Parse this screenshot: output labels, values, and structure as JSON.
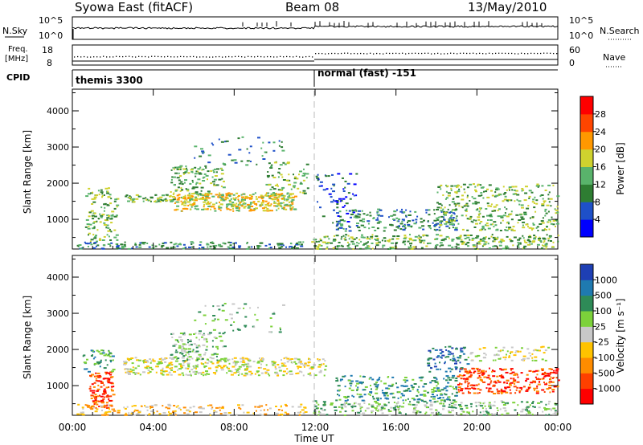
{
  "header": {
    "station": "Syowa East (fitACF)",
    "beam": "Beam 08",
    "date": "13/May/2010"
  },
  "panels": {
    "nsky_label": "N.Sky",
    "nsky_ticks": [
      "10^5",
      "10^0"
    ],
    "nsearch_label": "N.Search",
    "nsearch_ticks": [
      "10^5",
      "10^0"
    ],
    "freq_label_1": "Freq.",
    "freq_label_2": "[MHz]",
    "freq_ticks": [
      "18",
      "8"
    ],
    "nave_label": "Nave",
    "nave_ticks": [
      "60",
      "0"
    ],
    "cpid_label": "CPID",
    "cpid_segments": [
      "themis 3300",
      "normal (fast) -151"
    ]
  },
  "colorbars": {
    "power": {
      "label": "Power [dB]",
      "ticks": [
        "28",
        "24",
        "20",
        "16",
        "12",
        "8",
        "4"
      ],
      "colors": [
        "#0000ff",
        "#1e50c8",
        "#2e7d32",
        "#59b36b",
        "#cfd22e",
        "#ff9800",
        "#ff4500",
        "#ff0000"
      ]
    },
    "velocity": {
      "label": "Velocity [m s⁻¹]",
      "ticks": [
        "1000",
        "500",
        "100",
        "25",
        "-25",
        "-100",
        "-500",
        "-1000"
      ],
      "colors": [
        "#ff0000",
        "#ff4000",
        "#ff8c00",
        "#ffc300",
        "#c8c8c8",
        "#7cd13a",
        "#2e8b57",
        "#1f7ab0",
        "#1e3fb4"
      ]
    }
  },
  "chart_data": [
    {
      "type": "heatmap",
      "title": "Power",
      "ylabel": "Slant Range [km]",
      "xlabel": "",
      "x_ticks": [
        "00:00",
        "04:00",
        "08:00",
        "12:00",
        "16:00",
        "20:00",
        "00:00"
      ],
      "y_ticks": [
        "1000",
        "2000",
        "3000",
        "4000"
      ],
      "ylim": [
        180,
        4600
      ],
      "xlim_hours": [
        0,
        24
      ],
      "scatter_regions": [
        {
          "t0": 0.6,
          "t1": 2.2,
          "r0": 400,
          "r1": 1900,
          "n": 120,
          "level": 3
        },
        {
          "t0": 0.2,
          "t1": 11.5,
          "r0": 200,
          "r1": 400,
          "n": 160,
          "level": 2
        },
        {
          "t0": 2.5,
          "t1": 5.0,
          "r0": 1500,
          "r1": 1700,
          "n": 60,
          "level": 3
        },
        {
          "t0": 5.0,
          "t1": 11.0,
          "r0": 1250,
          "r1": 1750,
          "n": 360,
          "level": 4
        },
        {
          "t0": 4.8,
          "t1": 7.5,
          "r0": 1700,
          "r1": 2500,
          "n": 120,
          "level": 3
        },
        {
          "t0": 6.0,
          "t1": 10.5,
          "r0": 2500,
          "r1": 3300,
          "n": 50,
          "level": 2
        },
        {
          "t0": 9.5,
          "t1": 11.6,
          "r0": 1700,
          "r1": 2600,
          "n": 70,
          "level": 3
        },
        {
          "t0": 11.8,
          "t1": 24.0,
          "r0": 200,
          "r1": 600,
          "n": 340,
          "level": 3
        },
        {
          "t0": 13.0,
          "t1": 19.0,
          "r0": 700,
          "r1": 1300,
          "n": 200,
          "level": 2
        },
        {
          "t0": 18.0,
          "t1": 24.0,
          "r0": 700,
          "r1": 2000,
          "n": 360,
          "level": 3
        },
        {
          "t0": 12.0,
          "t1": 14.0,
          "r0": 900,
          "r1": 2300,
          "n": 60,
          "level": 1
        }
      ]
    },
    {
      "type": "heatmap",
      "title": "Velocity",
      "ylabel": "Slant Range [km]",
      "xlabel": "Time UT",
      "x_ticks": [
        "00:00",
        "04:00",
        "08:00",
        "12:00",
        "16:00",
        "20:00",
        "00:00"
      ],
      "y_ticks": [
        "1000",
        "2000",
        "3000",
        "4000"
      ],
      "ylim": [
        180,
        4600
      ],
      "xlim_hours": [
        0,
        24
      ],
      "scatter_regions": [
        {
          "t0": 0.8,
          "t1": 2.0,
          "r0": 400,
          "r1": 1400,
          "n": 110,
          "level": 1
        },
        {
          "t0": 0.5,
          "t1": 2.0,
          "r0": 1400,
          "r1": 2000,
          "n": 50,
          "level": 6
        },
        {
          "t0": 0.2,
          "t1": 11.5,
          "r0": 200,
          "r1": 500,
          "n": 170,
          "level": 3
        },
        {
          "t0": 2.5,
          "t1": 12.5,
          "r0": 1300,
          "r1": 1800,
          "n": 380,
          "level": 4
        },
        {
          "t0": 4.8,
          "t1": 7.5,
          "r0": 1700,
          "r1": 2500,
          "n": 120,
          "level": 5
        },
        {
          "t0": 6.0,
          "t1": 10.5,
          "r0": 2500,
          "r1": 3300,
          "n": 50,
          "level": 5
        },
        {
          "t0": 11.8,
          "t1": 24.0,
          "r0": 200,
          "r1": 600,
          "n": 300,
          "level": 5
        },
        {
          "t0": 13.0,
          "t1": 19.0,
          "r0": 600,
          "r1": 1300,
          "n": 220,
          "level": 6
        },
        {
          "t0": 17.5,
          "t1": 19.5,
          "r0": 1400,
          "r1": 2100,
          "n": 80,
          "level": 7
        },
        {
          "t0": 19.0,
          "t1": 24.0,
          "r0": 800,
          "r1": 1500,
          "n": 260,
          "level": 1
        },
        {
          "t0": 19.5,
          "t1": 23.5,
          "r0": 1700,
          "r1": 2100,
          "n": 70,
          "level": 4
        }
      ]
    }
  ]
}
